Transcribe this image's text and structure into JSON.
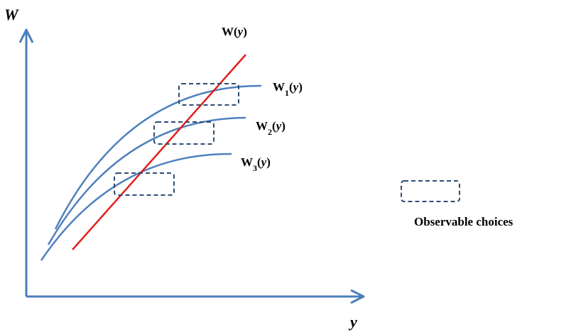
{
  "axes": {
    "y_axis_label": "W",
    "x_axis_label": "y"
  },
  "curves": [
    {
      "id": "w1",
      "base": "W",
      "sub": "1",
      "var": "y"
    },
    {
      "id": "w2",
      "base": "W",
      "sub": "2",
      "var": "y"
    },
    {
      "id": "w3",
      "base": "W",
      "sub": "3",
      "var": "y"
    }
  ],
  "line": {
    "base": "W",
    "var": "y"
  },
  "legend": {
    "label": "Observable choices"
  },
  "colors": {
    "axis": "#4a7ebb",
    "curve": "#4f81bd",
    "line": "#e02020",
    "box": "#2e4d73"
  }
}
